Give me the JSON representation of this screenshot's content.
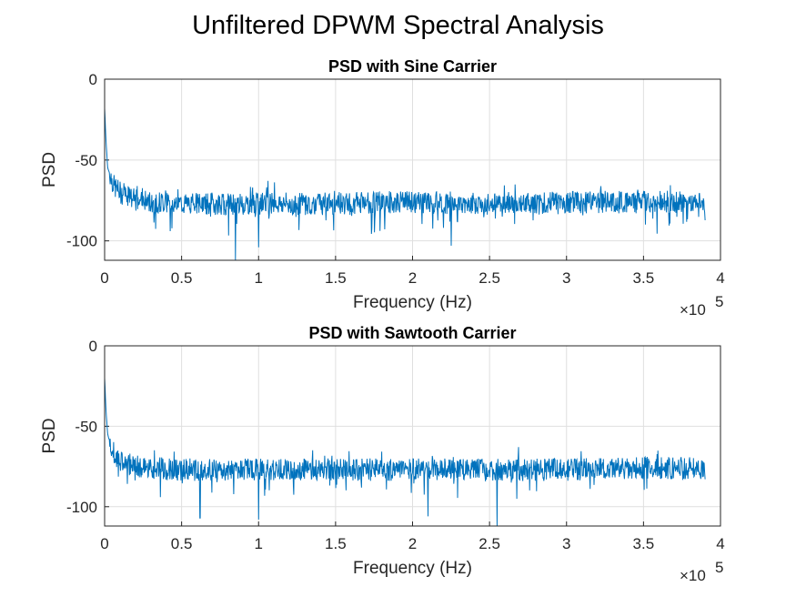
{
  "figure": {
    "title": "Unfiltered DPWM Spectral Analysis"
  },
  "chart_data": [
    {
      "type": "line",
      "title": "PSD with Sine Carrier",
      "xlabel": "Frequency (Hz)",
      "ylabel": "PSD",
      "xlim": [
        0,
        400000
      ],
      "ylim": [
        -112,
        0
      ],
      "x_ticks": [
        "0",
        "0.5",
        "1",
        "1.5",
        "2",
        "2.5",
        "3",
        "3.5",
        "4"
      ],
      "y_ticks": [
        "0",
        "-50",
        "-100"
      ],
      "x_exponent": "×10",
      "x_exponent_power": "5",
      "grid": true,
      "series": [
        {
          "color": "#0072bd",
          "x": [
            0,
            1000,
            2000,
            4000,
            6000,
            10000,
            20000,
            30000,
            50000,
            85000,
            100000,
            150000,
            200000,
            225000,
            250000,
            300000,
            350000,
            390000
          ],
          "y": [
            -18,
            -40,
            -55,
            -60,
            -66,
            -70,
            -75,
            -76,
            -77,
            -112,
            -104,
            -77,
            -76,
            -103,
            -77,
            -76,
            -76,
            -76
          ]
        }
      ]
    },
    {
      "type": "line",
      "title": "PSD with Sawtooth Carrier",
      "xlabel": "Frequency (Hz)",
      "ylabel": "PSD",
      "xlim": [
        0,
        400000
      ],
      "ylim": [
        -112,
        0
      ],
      "x_ticks": [
        "0",
        "0.5",
        "1",
        "1.5",
        "2",
        "2.5",
        "3",
        "3.5",
        "4"
      ],
      "y_ticks": [
        "0",
        "-50",
        "-100"
      ],
      "x_exponent": "×10",
      "x_exponent_power": "5",
      "grid": true,
      "series": [
        {
          "color": "#0072bd",
          "x": [
            0,
            1000,
            2000,
            4000,
            6000,
            10000,
            20000,
            30000,
            50000,
            62000,
            100000,
            150000,
            210000,
            255000,
            300000,
            350000,
            390000
          ],
          "y": [
            -20,
            -42,
            -55,
            -62,
            -67,
            -72,
            -75,
            -76,
            -77,
            -107,
            -108,
            -77,
            -106,
            -112,
            -77,
            -76,
            -76
          ]
        }
      ]
    }
  ]
}
